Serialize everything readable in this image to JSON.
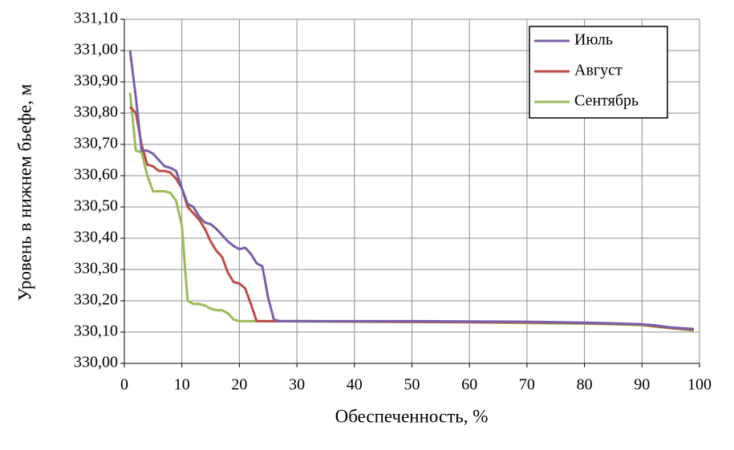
{
  "chart_data": {
    "type": "line",
    "xlabel": "Обеспеченность, %",
    "ylabel": "Уровень в нижнем бьефе, м",
    "x": [
      1,
      2,
      3,
      4,
      5,
      6,
      7,
      8,
      9,
      10,
      11,
      12,
      13,
      14,
      15,
      16,
      17,
      18,
      19,
      20,
      21,
      22,
      23,
      24,
      25,
      26,
      27,
      30,
      40,
      50,
      60,
      70,
      80,
      85,
      90,
      92,
      95,
      99
    ],
    "series": [
      {
        "name": "Июль",
        "color": "#7a5fa8",
        "values": [
          331.0,
          330.85,
          330.68,
          330.68,
          330.67,
          330.65,
          330.63,
          330.625,
          330.615,
          330.56,
          330.51,
          330.5,
          330.47,
          330.45,
          330.445,
          330.43,
          330.41,
          330.39,
          330.375,
          330.365,
          330.37,
          330.35,
          330.32,
          330.31,
          330.21,
          330.14,
          330.135,
          330.135,
          330.135,
          330.135,
          330.134,
          330.133,
          330.13,
          330.128,
          330.125,
          330.122,
          330.115,
          330.11
        ]
      },
      {
        "name": "Август",
        "color": "#be4b48",
        "values": [
          330.82,
          330.8,
          330.7,
          330.635,
          330.63,
          330.615,
          330.615,
          330.61,
          330.59,
          330.56,
          330.5,
          330.48,
          330.46,
          330.43,
          330.39,
          330.36,
          330.34,
          330.29,
          330.26,
          330.255,
          330.24,
          330.19,
          330.135,
          330.135,
          330.135,
          330.135,
          330.135,
          330.135,
          330.134,
          330.133,
          330.132,
          330.131,
          330.129,
          330.127,
          330.124,
          330.12,
          330.113,
          330.108
        ]
      },
      {
        "name": "Сентябрь",
        "color": "#9bbb59",
        "values": [
          330.865,
          330.68,
          330.675,
          330.6,
          330.55,
          330.55,
          330.55,
          330.545,
          330.52,
          330.44,
          330.2,
          330.19,
          330.19,
          330.185,
          330.175,
          330.17,
          330.17,
          330.16,
          330.14,
          330.135,
          330.135,
          330.135,
          330.135,
          330.135,
          330.135,
          330.135,
          330.135,
          330.134,
          330.133,
          330.132,
          330.131,
          330.129,
          330.127,
          330.125,
          330.122,
          330.118,
          330.112,
          330.105
        ]
      }
    ],
    "xlim": [
      0,
      100
    ],
    "xticks": [
      0,
      10,
      20,
      30,
      40,
      50,
      60,
      70,
      80,
      90,
      100
    ],
    "ylim": [
      330.0,
      331.1
    ],
    "yticks": [
      {
        "value": 330.0,
        "label": "330,00"
      },
      {
        "value": 330.1,
        "label": "330,10"
      },
      {
        "value": 330.2,
        "label": "330,20"
      },
      {
        "value": 330.3,
        "label": "330,30"
      },
      {
        "value": 330.4,
        "label": "330,40"
      },
      {
        "value": 330.5,
        "label": "330,50"
      },
      {
        "value": 330.6,
        "label": "330,60"
      },
      {
        "value": 330.7,
        "label": "330,70"
      },
      {
        "value": 330.8,
        "label": "330,80"
      },
      {
        "value": 330.9,
        "label": "330,90"
      },
      {
        "value": 331.0,
        "label": "331,00"
      },
      {
        "value": 331.1,
        "label": "331,10"
      }
    ],
    "grid": true,
    "legend": "top-right"
  }
}
